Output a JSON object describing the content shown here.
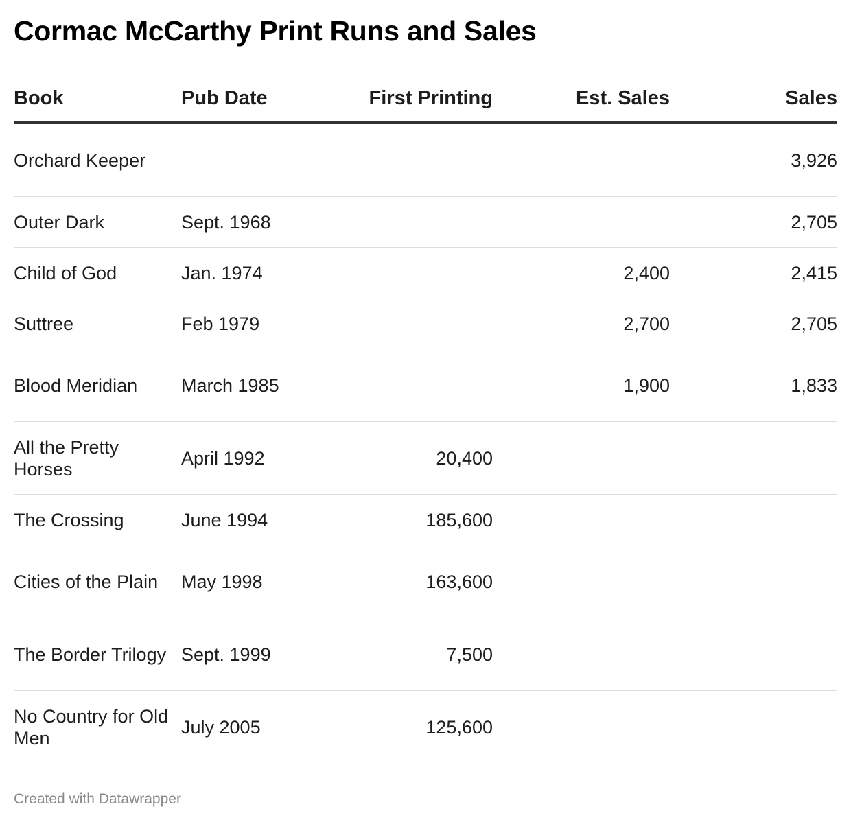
{
  "chart_data": {
    "type": "table",
    "title": "Cormac McCarthy Print Runs and Sales",
    "columns": [
      "Book",
      "Pub Date",
      "First Printing",
      "Est. Sales",
      "Sales"
    ],
    "rows": [
      {
        "book": "Orchard Keeper",
        "pub_date": "",
        "first_printing": "",
        "est_sales": "",
        "sales": "3,926"
      },
      {
        "book": "Outer Dark",
        "pub_date": "Sept. 1968",
        "first_printing": "",
        "est_sales": "",
        "sales": "2,705"
      },
      {
        "book": "Child of God",
        "pub_date": "Jan. 1974",
        "first_printing": "",
        "est_sales": "2,400",
        "sales": "2,415"
      },
      {
        "book": "Suttree",
        "pub_date": "Feb 1979",
        "first_printing": "",
        "est_sales": "2,700",
        "sales": "2,705"
      },
      {
        "book": "Blood Meridian",
        "pub_date": "March 1985",
        "first_printing": "",
        "est_sales": "1,900",
        "sales": "1,833"
      },
      {
        "book": "All the Pretty Horses",
        "pub_date": "April 1992",
        "first_printing": "20,400",
        "est_sales": "",
        "sales": ""
      },
      {
        "book": "The Crossing",
        "pub_date": "June 1994",
        "first_printing": "185,600",
        "est_sales": "",
        "sales": ""
      },
      {
        "book": "Cities of the Plain",
        "pub_date": "May 1998",
        "first_printing": "163,600",
        "est_sales": "",
        "sales": ""
      },
      {
        "book": "The Border Trilogy",
        "pub_date": "Sept. 1999",
        "first_printing": "7,500",
        "est_sales": "",
        "sales": ""
      },
      {
        "book": "No Country for Old Men",
        "pub_date": "July 2005",
        "first_printing": "125,600",
        "est_sales": "",
        "sales": ""
      }
    ]
  },
  "footer": "Created with Datawrapper"
}
